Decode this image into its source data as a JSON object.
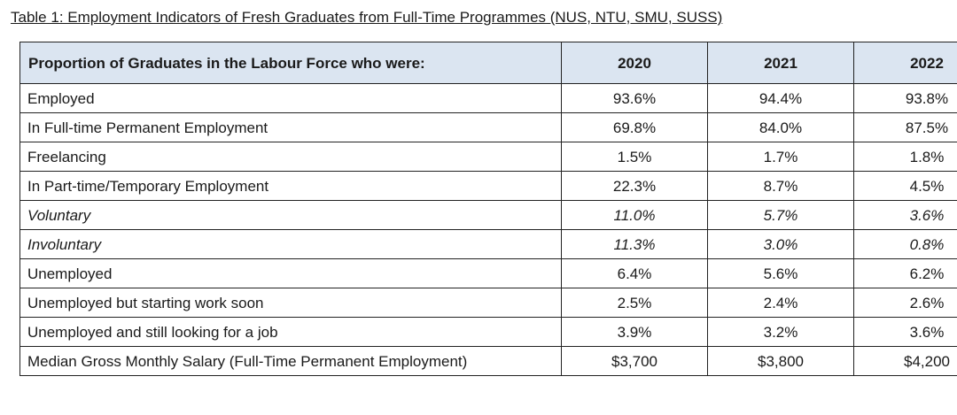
{
  "title": "Table 1: Employment Indicators of Fresh Graduates from Full-Time Programmes (NUS, NTU, SMU, SUSS)",
  "colors": {
    "header_bg": "#dbe5f1",
    "border": "#222222"
  },
  "table": {
    "header": {
      "label": "Proportion of Graduates in the Labour Force who were:",
      "years": [
        "2020",
        "2021",
        "2022"
      ]
    },
    "rows": [
      {
        "label": "Employed",
        "indent": 0,
        "italic": false,
        "values": [
          "93.6%",
          "94.4%",
          "93.8%"
        ]
      },
      {
        "label": "In Full-time Permanent Employment",
        "indent": 1,
        "italic": false,
        "values": [
          "69.8%",
          "84.0%",
          "87.5%"
        ]
      },
      {
        "label": "Freelancing",
        "indent": 1,
        "italic": false,
        "values": [
          "1.5%",
          "1.7%",
          "1.8%"
        ]
      },
      {
        "label": "In Part-time/Temporary Employment",
        "indent": 1,
        "italic": false,
        "values": [
          "22.3%",
          "8.7%",
          "4.5%"
        ]
      },
      {
        "label": "Voluntary",
        "indent": 2,
        "italic": true,
        "values": [
          "11.0%",
          "5.7%",
          "3.6%"
        ]
      },
      {
        "label": "Involuntary",
        "indent": 2,
        "italic": true,
        "values": [
          "11.3%",
          "3.0%",
          "0.8%"
        ]
      },
      {
        "label": "Unemployed",
        "indent": 0,
        "italic": false,
        "values": [
          "6.4%",
          "5.6%",
          "6.2%"
        ]
      },
      {
        "label": "Unemployed but starting work soon",
        "indent": 1,
        "italic": false,
        "values": [
          "2.5%",
          "2.4%",
          "2.6%"
        ]
      },
      {
        "label": "Unemployed and still looking for a job",
        "indent": 1,
        "italic": false,
        "values": [
          "3.9%",
          "3.2%",
          "3.6%"
        ]
      },
      {
        "label": "Median Gross Monthly Salary (Full-Time Permanent Employment)",
        "indent": 0,
        "italic": false,
        "values": [
          "$3,700",
          "$3,800",
          "$4,200"
        ]
      }
    ]
  }
}
